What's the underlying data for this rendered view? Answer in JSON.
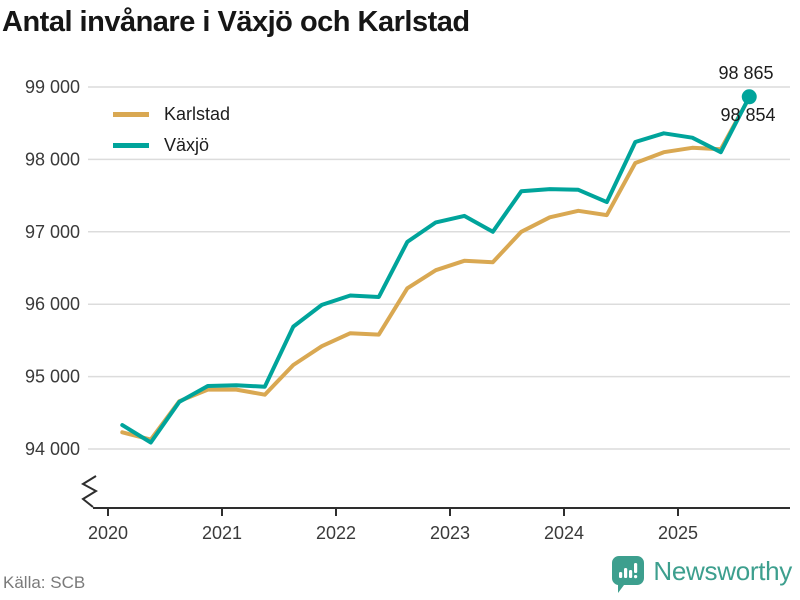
{
  "title": "Antal invånare i Växjö och Karlstad",
  "source": "Källa: SCB",
  "branding": {
    "name": "Newsworthy",
    "color": "#3D9F8E"
  },
  "legend": [
    {
      "label": "Karlstad",
      "color": "#D9A852"
    },
    {
      "label": "Växjö",
      "color": "#00A49B"
    }
  ],
  "end_labels": {
    "vaxjo": "98 865",
    "karlstad": "98 854"
  },
  "chart_data": {
    "type": "line",
    "title": "Antal invånare i Växjö och Karlstad",
    "x_quarters": [
      "2020 Q1",
      "2020 Q2",
      "2020 Q3",
      "2020 Q4",
      "2021 Q1",
      "2021 Q2",
      "2021 Q3",
      "2021 Q4",
      "2022 Q1",
      "2022 Q2",
      "2022 Q3",
      "2022 Q4",
      "2023 Q1",
      "2023 Q2",
      "2023 Q3",
      "2023 Q4",
      "2024 Q1",
      "2024 Q2",
      "2024 Q3",
      "2024 Q4",
      "2025 Q1",
      "2025 Q2",
      "2025 Q3"
    ],
    "series": [
      {
        "name": "Karlstad",
        "color": "#D9A852",
        "end_dot": false,
        "values": [
          94230,
          94130,
          94660,
          94820,
          94820,
          94750,
          95160,
          95420,
          95600,
          95580,
          96220,
          96470,
          96600,
          96580,
          97000,
          97200,
          97290,
          97230,
          97950,
          98100,
          98160,
          98140,
          98854
        ]
      },
      {
        "name": "Växjö",
        "color": "#00A49B",
        "end_dot": true,
        "values": [
          94330,
          94090,
          94650,
          94870,
          94880,
          94860,
          95690,
          95990,
          96120,
          96100,
          96860,
          97130,
          97220,
          97000,
          97560,
          97590,
          97580,
          97410,
          98240,
          98360,
          98300,
          98100,
          98865
        ]
      }
    ],
    "end_values": {
      "Växjö": 98865,
      "Karlstad": 98854
    },
    "yticks": [
      99000,
      98000,
      97000,
      96000,
      95000,
      94000
    ],
    "ytick_labels": [
      "99 000",
      "98 000",
      "97 000",
      "96 000",
      "95 000",
      "94 000"
    ],
    "xticks": [
      2020,
      2021,
      2022,
      2023,
      2024,
      2025
    ],
    "xtick_labels": [
      "2020",
      "2021",
      "2022",
      "2023",
      "2024",
      "2025"
    ],
    "ylim": [
      94000,
      99000
    ],
    "xlim": [
      2020,
      2026
    ],
    "grid": true,
    "axis_break": true,
    "legend_position": "top-left",
    "ylabel": "",
    "xlabel": ""
  }
}
